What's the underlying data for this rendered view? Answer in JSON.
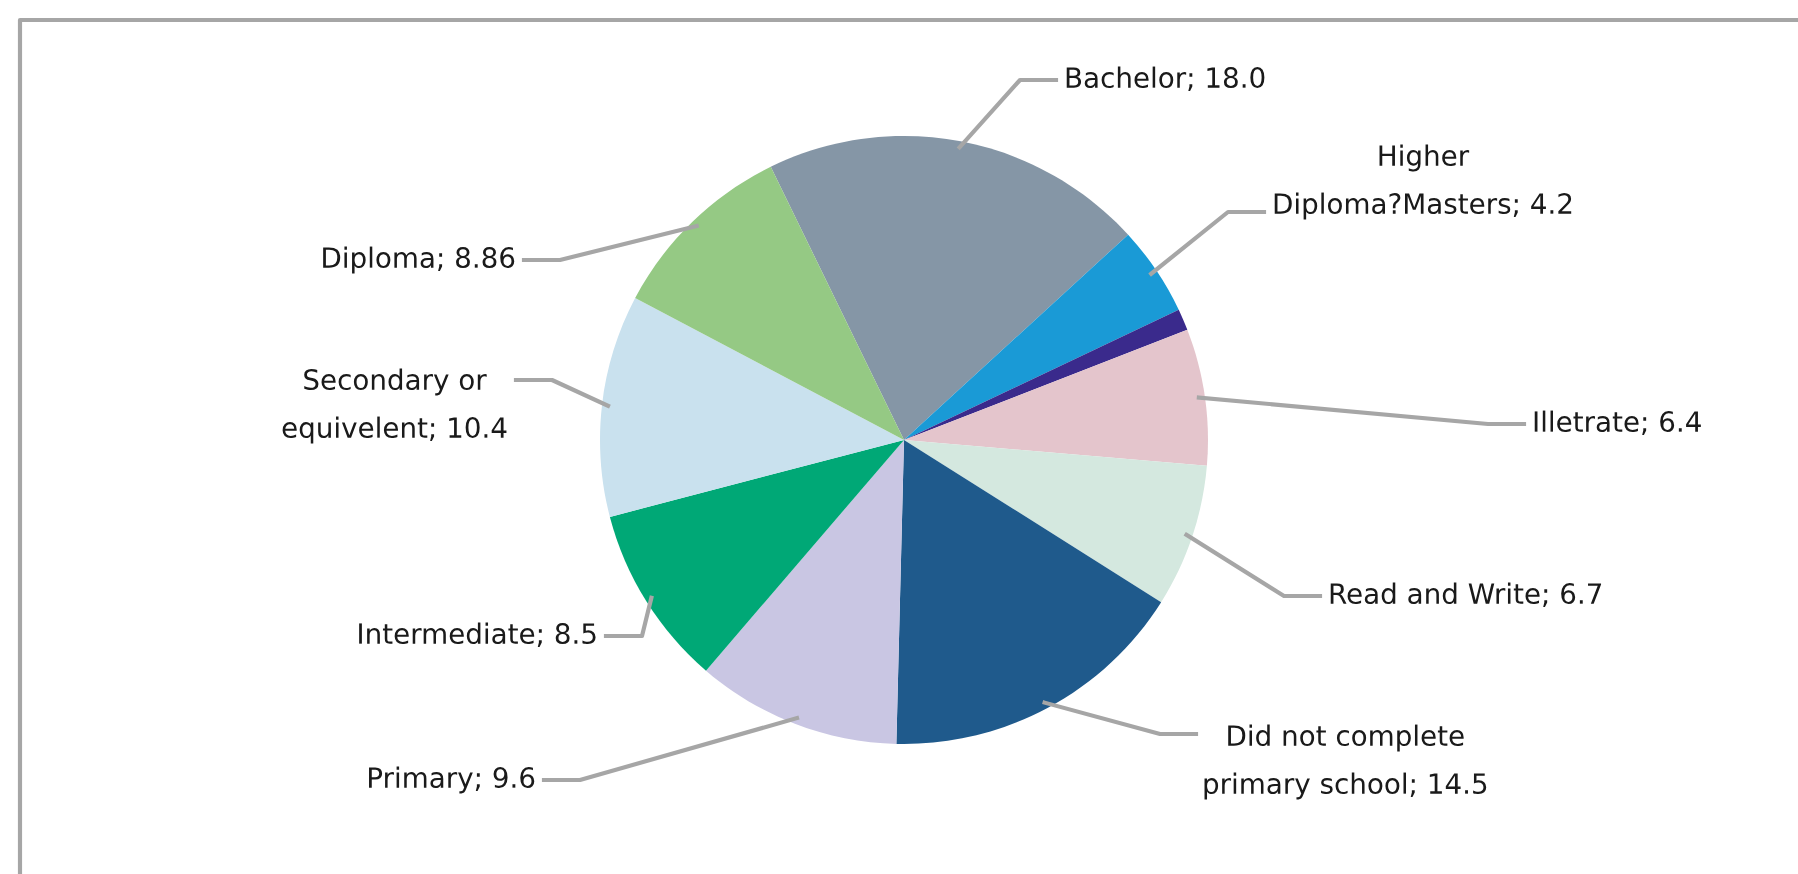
{
  "chart_data": {
    "type": "pie",
    "categories": [
      "Bachelor",
      "Higher\nDiploma?Masters",
      null,
      "Illetrate",
      "Read and Write",
      "Did not complete\nprimary school",
      "Primary",
      "Intermediate",
      "Secondary or\nequivelent",
      "Diploma"
    ],
    "values": [
      18.0,
      4.2,
      1.0,
      6.4,
      6.7,
      14.5,
      9.6,
      8.5,
      10.4,
      8.86
    ],
    "value_labels": [
      "18.0",
      "4.2",
      null,
      "6.4",
      "6.7",
      "14.5",
      "9.6",
      "8.5",
      "10.4",
      "8.86"
    ],
    "colors": [
      "#8596a6",
      "#1a9ad6",
      "#3a2a8c",
      "#e4c5cc",
      "#d4e8df",
      "#1f5a8c",
      "#c9c6e3",
      "#00a876",
      "#c9e1ee",
      "#95c984"
    ],
    "legend": false
  }
}
